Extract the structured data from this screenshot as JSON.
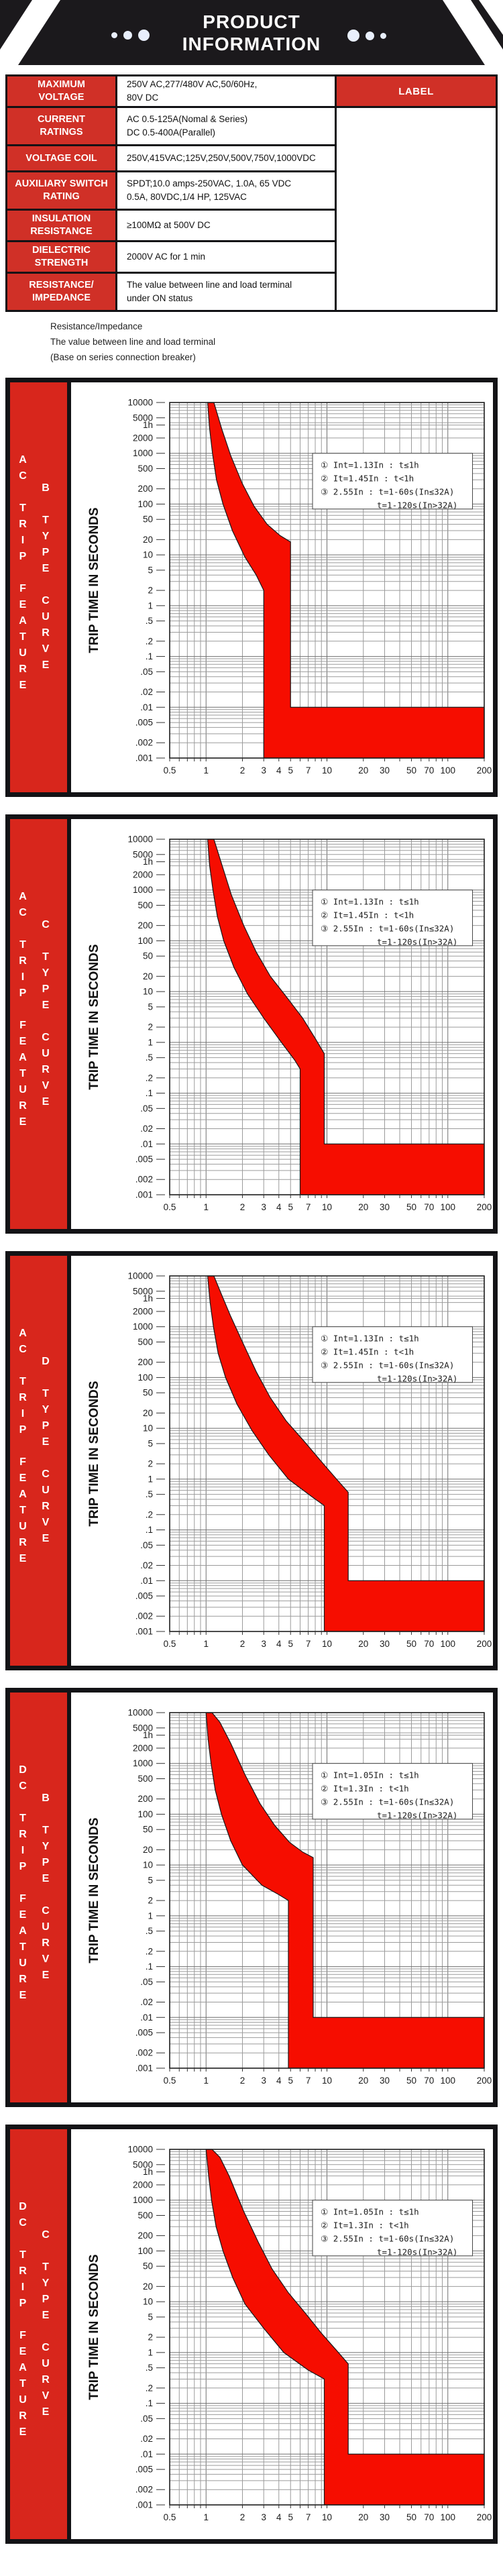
{
  "header": {
    "title": "PRODUCT\nINFORMATION"
  },
  "table": {
    "label_box": "LABEL",
    "rows": [
      {
        "label": "MAXIMUM\nVOLTAGE",
        "value": "250V AC,277/480V AC,50/60Hz,\n80V DC"
      },
      {
        "label": "CURRENT\nRATINGS",
        "value": "AC 0.5-125A(Nomal & Series)\nDC 0.5-400A(Parallel)"
      },
      {
        "label": "VOLTAGE COIL",
        "value": "250V,415VAC;125V,250V,500V,750V,1000VDC"
      },
      {
        "label": "AUXILIARY SWITCH\nRATING",
        "value": "SPDT;10.0 amps-250VAC, 1.0A, 65 VDC\n0.5A, 80VDC,1/4 HP, 125VAC"
      },
      {
        "label": "INSULATION\nRESISTANCE",
        "value": "≥100MΩ at 500V DC"
      },
      {
        "label": "DIELECTRIC\nSTRENGTH",
        "value": "2000V AC for 1 min"
      },
      {
        "label": "RESISTANCE/\nIMPEDANCE",
        "value": "The value between line and load terminal\nunder ON status"
      }
    ]
  },
  "notes": [
    "Resistance/Impedance",
    "The value between line and load terminal",
    "(Base on series connection breaker)"
  ],
  "colors": {
    "header_black": "#1b191c",
    "table_red": "#d03027",
    "sidebar_red": "#d8261c",
    "band_red": "#f60d00",
    "grid_gray": "#9b9b9b",
    "grid_dark": "#6f6f6f"
  },
  "axis": {
    "ylabel": "TRIP TIME IN SECONDS",
    "xscale": "log",
    "yscale": "log",
    "xlim": [
      0.5,
      200
    ],
    "ylim": [
      0.001,
      10000
    ],
    "xticks": [
      0.5,
      1,
      2,
      3,
      4,
      5,
      7,
      10,
      20,
      30,
      50,
      70,
      100,
      200
    ],
    "xtick_labels": [
      "0.5",
      "1",
      "2",
      "3",
      "4",
      "5",
      "7",
      "10",
      "20",
      "30",
      "50",
      "70",
      "100",
      "200"
    ],
    "ytick_values": [
      10000,
      5000,
      3600,
      2000,
      1000,
      500,
      200,
      100,
      50,
      20,
      10,
      5,
      2,
      1,
      0.5,
      0.2,
      0.1,
      0.05,
      0.02,
      0.01,
      0.005,
      0.002,
      0.001
    ],
    "ytick_labels": [
      "10000",
      "5000",
      "1h",
      "2000",
      "1000",
      "500",
      "200",
      "100",
      "50",
      "20",
      "10",
      "5",
      "2",
      "1",
      ".5",
      ".2",
      ".1",
      ".05",
      ".02",
      ".01",
      ".005",
      ".002",
      ".001"
    ]
  },
  "charts": [
    {
      "title": "AC TRIP FEATURE - B TYPE CURVE",
      "sidebar_line1": "AC TRIP FEATURE",
      "sidebar_line2": "B TYPE CURVE",
      "annotation": [
        "① Int=1.13In : t≤1h",
        "② It=1.45In : t<1h",
        "③ 2.55In : t=1-60s(In≤32A)",
        "t=1-120s(In>32A)"
      ],
      "chart_data": {
        "type": "area",
        "band_polygon": [
          [
            1.03,
            10000
          ],
          [
            1.07,
            3000
          ],
          [
            1.13,
            1000
          ],
          [
            1.22,
            300
          ],
          [
            1.38,
            100
          ],
          [
            1.65,
            30
          ],
          [
            2.1,
            9
          ],
          [
            2.6,
            4
          ],
          [
            3,
            2
          ],
          [
            3,
            0.001
          ],
          [
            200,
            0.001
          ],
          [
            200,
            0.01
          ],
          [
            5,
            0.01
          ],
          [
            5,
            18
          ],
          [
            4.1,
            24
          ],
          [
            3.2,
            40
          ],
          [
            2.5,
            90
          ],
          [
            2.0,
            250
          ],
          [
            1.6,
            900
          ],
          [
            1.35,
            3000
          ],
          [
            1.16,
            10000
          ]
        ],
        "magnetic_trip_range_xIn": [
          3,
          5
        ]
      }
    },
    {
      "title": "AC TRIP FEATURE - C TYPE CURVE",
      "sidebar_line1": "AC TRIP FEATURE",
      "sidebar_line2": "C TYPE CURVE",
      "annotation": [
        "① Int=1.13In : t≤1h",
        "② It=1.45In : t<1h",
        "③ 2.55In : t=1-60s(In≤32A)",
        "t=1-120s(In>32A)"
      ],
      "chart_data": {
        "type": "area",
        "band_polygon": [
          [
            1.03,
            10000
          ],
          [
            1.07,
            3000
          ],
          [
            1.14,
            1000
          ],
          [
            1.24,
            300
          ],
          [
            1.4,
            100
          ],
          [
            1.7,
            30
          ],
          [
            2.2,
            9
          ],
          [
            3.0,
            3
          ],
          [
            4.2,
            1
          ],
          [
            5.4,
            0.45
          ],
          [
            6,
            0.3
          ],
          [
            6,
            0.001
          ],
          [
            200,
            0.001
          ],
          [
            200,
            0.01
          ],
          [
            9.5,
            0.01
          ],
          [
            9.5,
            0.6
          ],
          [
            8,
            1.2
          ],
          [
            6.3,
            3
          ],
          [
            4.6,
            8
          ],
          [
            3.4,
            20
          ],
          [
            2.6,
            60
          ],
          [
            2.05,
            200
          ],
          [
            1.62,
            800
          ],
          [
            1.36,
            3000
          ],
          [
            1.16,
            10000
          ]
        ],
        "magnetic_trip_range_xIn": [
          6,
          9.5
        ]
      }
    },
    {
      "title": "AC TRIP FEATURE - D TYPE CURVE",
      "sidebar_line1": "AC TRIP FEATURE",
      "sidebar_line2": "D TYPE CURVE",
      "annotation": [
        "① Int=1.13In : t≤1h",
        "② It=1.45In : t<1h",
        "③ 2.55In : t=1-60s(In≤32A)",
        "t=1-120s(In>32A)"
      ],
      "chart_data": {
        "type": "area",
        "band_polygon": [
          [
            1.03,
            10000
          ],
          [
            1.08,
            3000
          ],
          [
            1.15,
            1000
          ],
          [
            1.26,
            300
          ],
          [
            1.45,
            100
          ],
          [
            1.8,
            30
          ],
          [
            2.4,
            9
          ],
          [
            3.3,
            3
          ],
          [
            4.8,
            1
          ],
          [
            7.5,
            0.45
          ],
          [
            9.5,
            0.3
          ],
          [
            9.5,
            0.001
          ],
          [
            200,
            0.001
          ],
          [
            200,
            0.01
          ],
          [
            15,
            0.01
          ],
          [
            15,
            0.55
          ],
          [
            12,
            1
          ],
          [
            9,
            2.2
          ],
          [
            6.5,
            5.5
          ],
          [
            4.6,
            14
          ],
          [
            3.4,
            40
          ],
          [
            2.6,
            130
          ],
          [
            2.0,
            500
          ],
          [
            1.6,
            1600
          ],
          [
            1.36,
            4000
          ],
          [
            1.16,
            10000
          ]
        ],
        "magnetic_trip_range_xIn": [
          9.5,
          15
        ]
      }
    },
    {
      "title": "DC TRIP FEATURE - B TYPE CURVE",
      "sidebar_line1": "DC TRIP FEATURE",
      "sidebar_line2": "B TYPE CURVE",
      "annotation": [
        "① Int=1.05In : t≤1h",
        "② It=1.3In : t<1h",
        "③ 2.55In : t=1-60s(In≤32A)",
        "t=1-120s(In>32A)"
      ],
      "chart_data": {
        "type": "area",
        "band_polygon": [
          [
            1.0,
            10000
          ],
          [
            1.04,
            3000
          ],
          [
            1.1,
            1000
          ],
          [
            1.19,
            300
          ],
          [
            1.34,
            100
          ],
          [
            1.6,
            30
          ],
          [
            2.0,
            10
          ],
          [
            2.9,
            4
          ],
          [
            4.0,
            2.6
          ],
          [
            4.8,
            2
          ],
          [
            4.8,
            0.001
          ],
          [
            200,
            0.001
          ],
          [
            200,
            0.01
          ],
          [
            7.7,
            0.01
          ],
          [
            7.7,
            14
          ],
          [
            6.3,
            18
          ],
          [
            4.9,
            28
          ],
          [
            3.7,
            60
          ],
          [
            2.8,
            160
          ],
          [
            2.1,
            600
          ],
          [
            1.6,
            2500
          ],
          [
            1.3,
            6500
          ],
          [
            1.12,
            10000
          ]
        ],
        "magnetic_trip_range_xIn": [
          4.8,
          7.7
        ]
      }
    },
    {
      "title": "DC TRIP FEATURE - C TYPE CURVE",
      "sidebar_line1": "DC TRIP FEATURE",
      "sidebar_line2": "C TYPE CURVE",
      "annotation": [
        "① Int=1.05In : t≤1h",
        "② It=1.3In : t<1h",
        "③ 2.55In : t=1-60s(In≤32A)",
        "t=1-120s(In>32A)"
      ],
      "chart_data": {
        "type": "area",
        "band_polygon": [
          [
            1.0,
            10000
          ],
          [
            1.05,
            3000
          ],
          [
            1.11,
            1000
          ],
          [
            1.21,
            300
          ],
          [
            1.38,
            100
          ],
          [
            1.66,
            30
          ],
          [
            2.1,
            9
          ],
          [
            3.0,
            3
          ],
          [
            4.4,
            1
          ],
          [
            7.0,
            0.45
          ],
          [
            9.5,
            0.3
          ],
          [
            9.5,
            0.001
          ],
          [
            200,
            0.001
          ],
          [
            200,
            0.01
          ],
          [
            15,
            0.01
          ],
          [
            15,
            0.6
          ],
          [
            12,
            1.1
          ],
          [
            9,
            2.4
          ],
          [
            6.6,
            6
          ],
          [
            4.8,
            15
          ],
          [
            3.5,
            45
          ],
          [
            2.7,
            150
          ],
          [
            2.05,
            600
          ],
          [
            1.55,
            3000
          ],
          [
            1.3,
            7000
          ],
          [
            1.12,
            10000
          ]
        ],
        "magnetic_trip_range_xIn": [
          9.5,
          15
        ]
      }
    }
  ]
}
